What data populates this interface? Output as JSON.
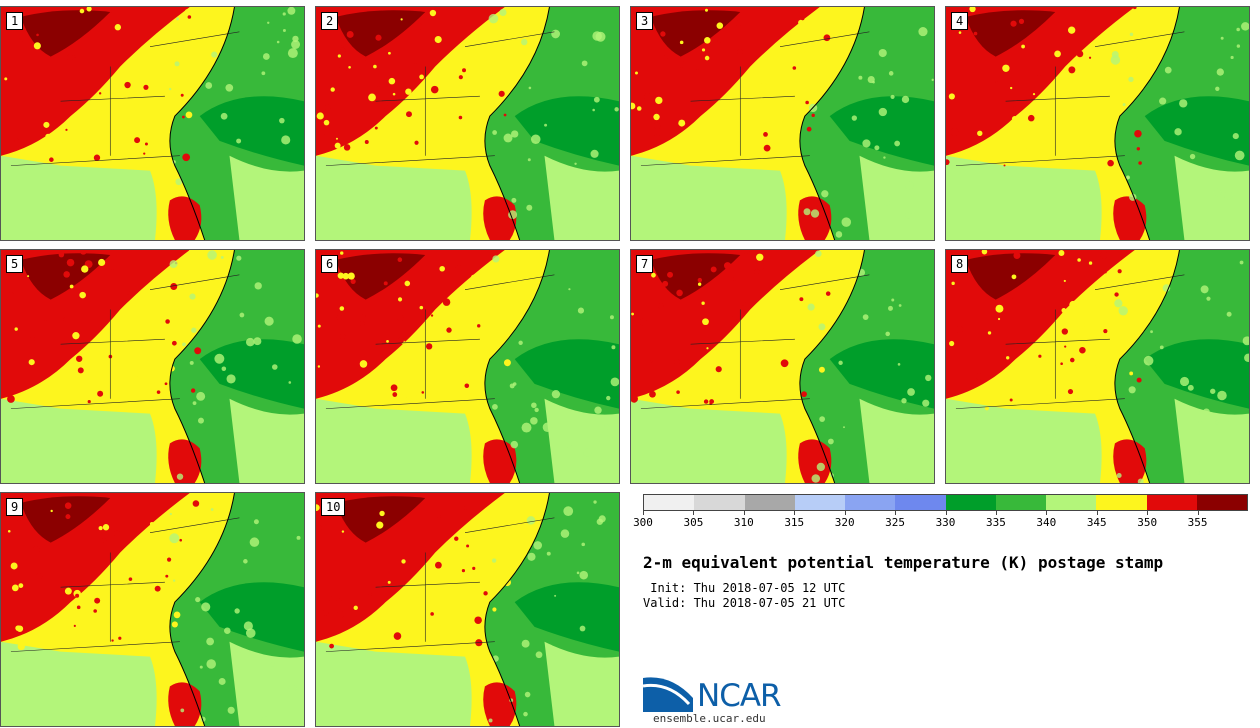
{
  "panels": [
    {
      "label": "1"
    },
    {
      "label": "2"
    },
    {
      "label": "3"
    },
    {
      "label": "4"
    },
    {
      "label": "5"
    },
    {
      "label": "6"
    },
    {
      "label": "7"
    },
    {
      "label": "8"
    },
    {
      "label": "9"
    },
    {
      "label": "10"
    }
  ],
  "colorbar": {
    "colors": [
      "#f0f0f0",
      "#d8d8d8",
      "#a8a8a8",
      "#b7cdf7",
      "#8aa4f2",
      "#6e88ee",
      "#009e2a",
      "#38b93a",
      "#b3f57a",
      "#fdf51e",
      "#e10a0a",
      "#8b0000"
    ],
    "ticks": [
      "300",
      "305",
      "310",
      "315",
      "320",
      "325",
      "330",
      "335",
      "340",
      "345",
      "350",
      "355"
    ]
  },
  "title": "2-m equivalent potential temperature (K) postage stamp",
  "init": " Init: Thu 2018-07-05 12 UTC",
  "valid": "Valid: Thu 2018-07-05 21 UTC",
  "logo": {
    "text": "NCAR",
    "url": "ensemble.ucar.edu"
  }
}
